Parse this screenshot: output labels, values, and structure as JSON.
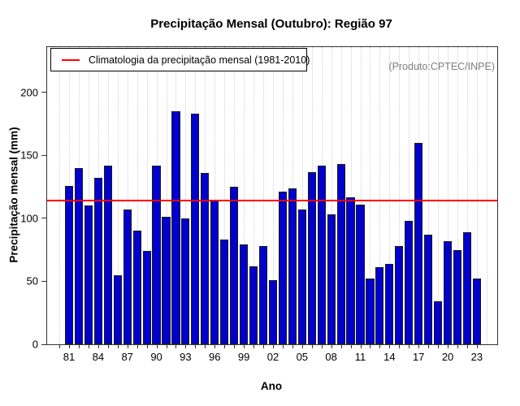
{
  "annotation": "(Produto:CPTEC/INPE)",
  "legend": {
    "label": "Climatologia da precipitação mensal (1981-2010)",
    "line_color": "#ff0000"
  },
  "chart_data": {
    "type": "bar",
    "title": "Precipitação Mensal (Outubro): Região 97",
    "xlabel": "Ano",
    "ylabel": "Precipitação mensal (mm)",
    "ylim": [
      0,
      236
    ],
    "yticks": [
      0,
      50,
      100,
      150,
      200
    ],
    "xtick_labels": [
      "81",
      "84",
      "87",
      "90",
      "93",
      "96",
      "99",
      "02",
      "05",
      "08",
      "11",
      "14",
      "17",
      "20",
      "23"
    ],
    "categories": [
      1981,
      1982,
      1983,
      1984,
      1985,
      1986,
      1987,
      1988,
      1989,
      1990,
      1991,
      1992,
      1993,
      1994,
      1995,
      1996,
      1997,
      1998,
      1999,
      2000,
      2001,
      2002,
      2003,
      2004,
      2005,
      2006,
      2007,
      2008,
      2009,
      2010,
      2011,
      2012,
      2013,
      2014,
      2015,
      2016,
      2017,
      2018,
      2019,
      2020,
      2021,
      2022,
      2023
    ],
    "values": [
      126,
      140,
      110,
      132,
      142,
      55,
      107,
      90,
      74,
      142,
      101,
      185,
      100,
      183,
      136,
      115,
      83,
      125,
      79,
      62,
      78,
      51,
      121,
      124,
      107,
      137,
      142,
      103,
      143,
      117,
      111,
      52,
      61,
      64,
      78,
      98,
      160,
      87,
      34,
      82,
      75,
      89,
      52
    ],
    "climatology_value": 114,
    "climatology_period": "1981-2010",
    "bar_color": "#0101ce",
    "bar_border_color": "#1a1a1a",
    "line_color": "#ff0000",
    "grid": "vertical-dotted",
    "grid_color": "#cfcfcf",
    "legend_position": "top-left"
  }
}
